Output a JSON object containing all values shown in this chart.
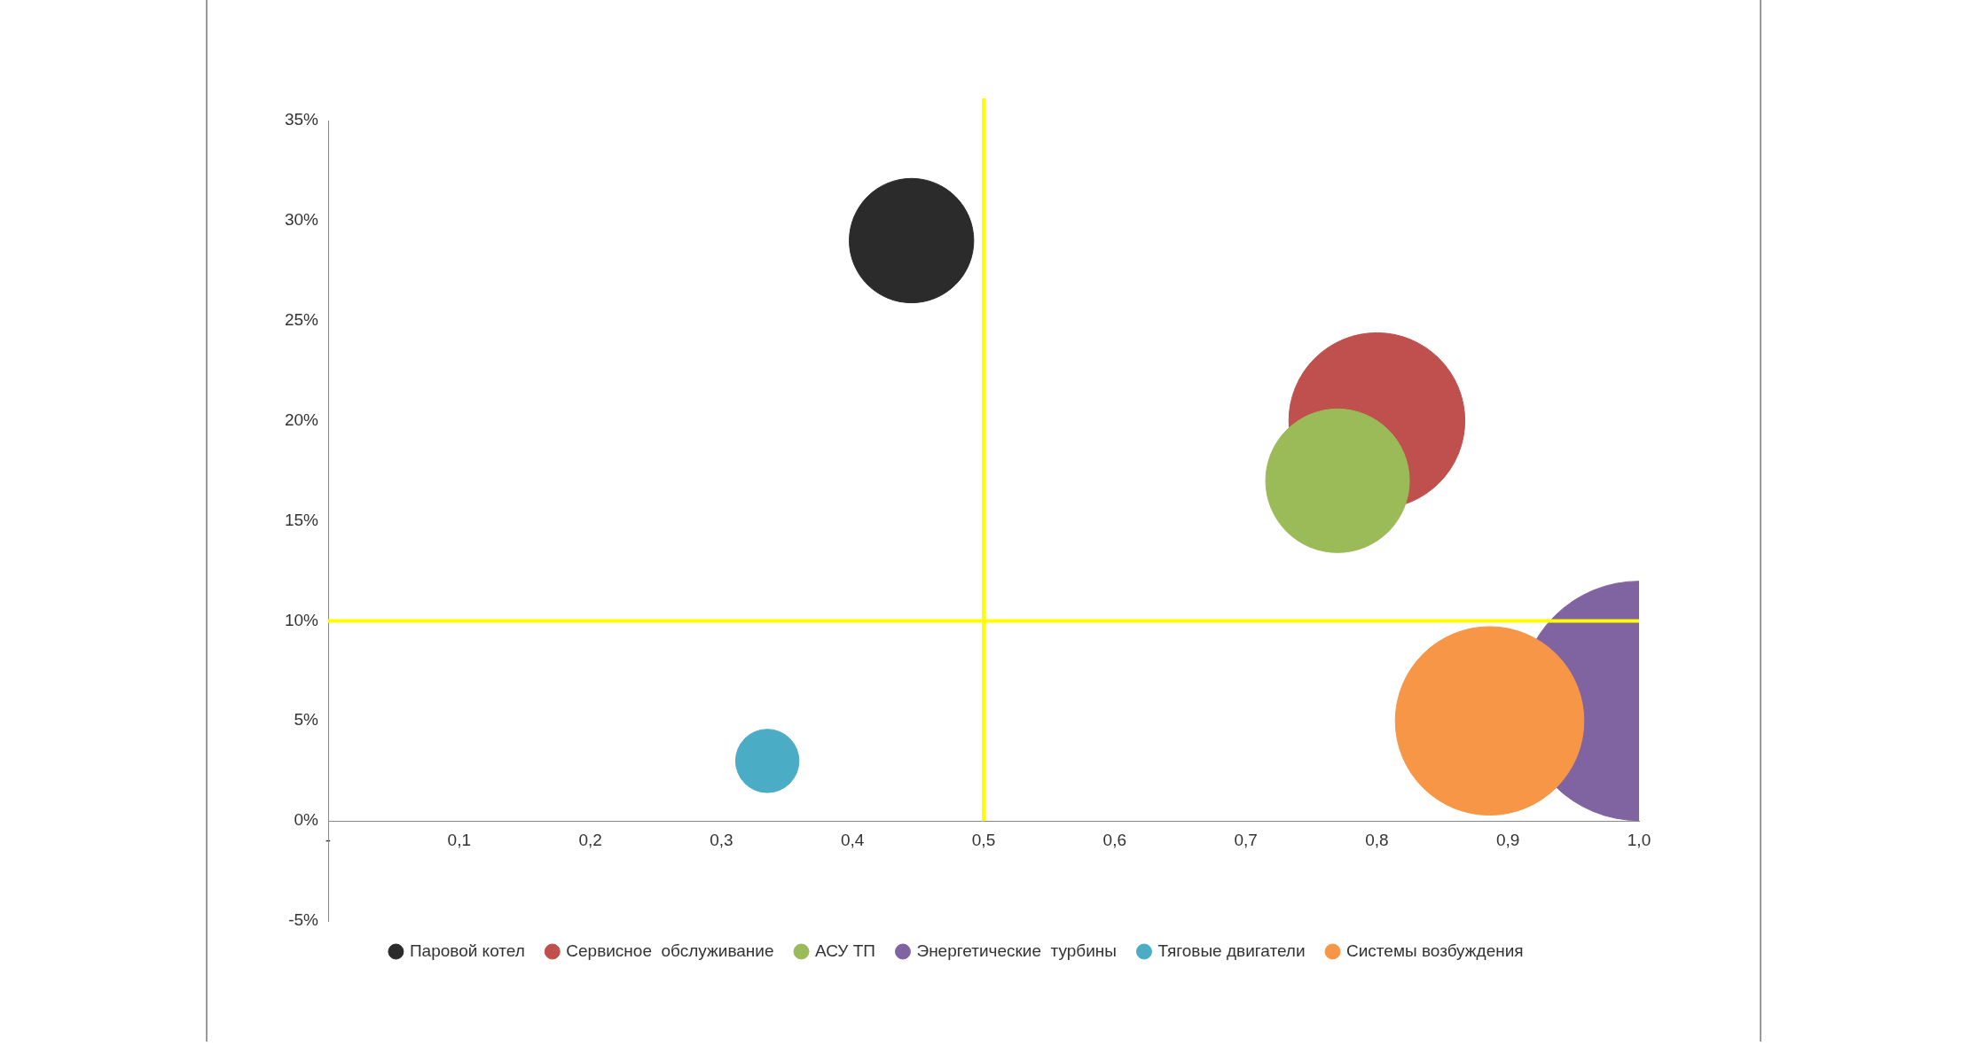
{
  "chart_data": {
    "type": "bubble",
    "xlim": [
      0,
      1
    ],
    "ylim": [
      -5,
      35
    ],
    "xticks": [
      {
        "value": 0,
        "label": "-"
      },
      {
        "value": 0.1,
        "label": "0,1"
      },
      {
        "value": 0.2,
        "label": "0,2"
      },
      {
        "value": 0.3,
        "label": "0,3"
      },
      {
        "value": 0.4,
        "label": "0,4"
      },
      {
        "value": 0.5,
        "label": "0,5"
      },
      {
        "value": 0.6,
        "label": "0,6"
      },
      {
        "value": 0.7,
        "label": "0,7"
      },
      {
        "value": 0.8,
        "label": "0,8"
      },
      {
        "value": 0.9,
        "label": "0,9"
      },
      {
        "value": 1,
        "label": "1,0"
      }
    ],
    "yticks": [
      {
        "value": -5,
        "label": "-5%"
      },
      {
        "value": 0,
        "label": "0%"
      },
      {
        "value": 5,
        "label": "5%"
      },
      {
        "value": 10,
        "label": "10%"
      },
      {
        "value": 15,
        "label": "15%"
      },
      {
        "value": 20,
        "label": "20%"
      },
      {
        "value": 25,
        "label": "25%"
      },
      {
        "value": 30,
        "label": "30%"
      },
      {
        "value": 35,
        "label": "35%"
      }
    ],
    "series": [
      {
        "name": "Паровой котел",
        "color": "#2b2b2b",
        "x": [
          0.445
        ],
        "values": [
          29
        ],
        "sizes": [
          0.27
        ]
      },
      {
        "name": "Сервисное  обслуживание",
        "color": "#c0504d",
        "x": [
          0.8
        ],
        "values": [
          20
        ],
        "sizes": [
          0.54
        ]
      },
      {
        "name": "АСУ ТП",
        "color": "#9bbb59",
        "x": [
          0.77
        ],
        "values": [
          17
        ],
        "sizes": [
          0.36
        ]
      },
      {
        "name": "Энергетические  турбины",
        "color": "#8064a2",
        "x": [
          1
        ],
        "values": [
          6
        ],
        "sizes": [
          1
        ]
      },
      {
        "name": "Тяговые двигатели",
        "color": "#4bacc6",
        "x": [
          0.335
        ],
        "values": [
          3
        ],
        "sizes": [
          0.07
        ]
      },
      {
        "name": "Системы возбуждения",
        "color": "#f79646",
        "x": [
          0.886
        ],
        "values": [
          5
        ],
        "sizes": [
          0.62
        ]
      }
    ],
    "ref_lines": [
      {
        "axis": "x",
        "value": 0.5,
        "color": "#ffff00"
      },
      {
        "axis": "y",
        "value": 10,
        "color": "#ffff00"
      }
    ],
    "grid": false,
    "legend": "bottom"
  }
}
